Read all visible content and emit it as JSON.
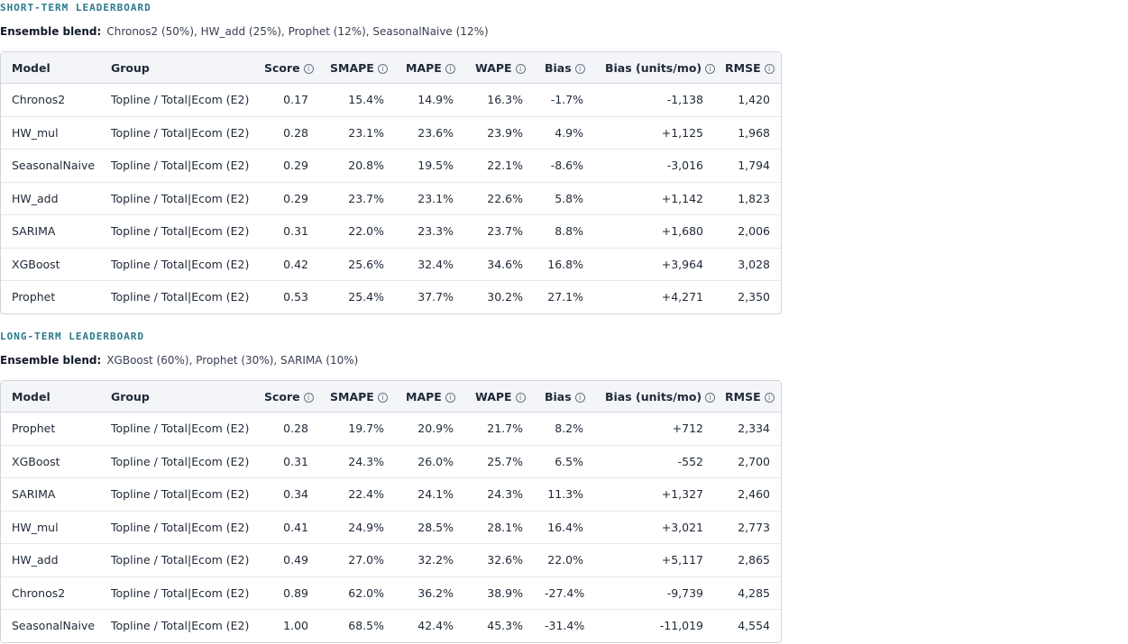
{
  "columns": {
    "model": "Model",
    "group": "Group",
    "score": "Score",
    "smape": "SMAPE",
    "mape": "MAPE",
    "wape": "WAPE",
    "bias": "Bias",
    "bias_units": "Bias (units/mo)",
    "rmse": "RMSE"
  },
  "ensemble_label": "Ensemble blend:",
  "short": {
    "title": "SHORT-TERM LEADERBOARD",
    "blend": "Chronos2 (50%), HW_add (25%), Prophet (12%), SeasonalNaive (12%)",
    "rows": [
      {
        "model": "Chronos2",
        "group": "Topline / Total|Ecom (E2)",
        "score": "0.17",
        "smape": "15.4%",
        "mape": "14.9%",
        "wape": "16.3%",
        "bias": "-1.7%",
        "bias_units": "-1,138",
        "rmse": "1,420"
      },
      {
        "model": "HW_mul",
        "group": "Topline / Total|Ecom (E2)",
        "score": "0.28",
        "smape": "23.1%",
        "mape": "23.6%",
        "wape": "23.9%",
        "bias": "4.9%",
        "bias_units": "+1,125",
        "rmse": "1,968"
      },
      {
        "model": "SeasonalNaive",
        "group": "Topline / Total|Ecom (E2)",
        "score": "0.29",
        "smape": "20.8%",
        "mape": "19.5%",
        "wape": "22.1%",
        "bias": "-8.6%",
        "bias_units": "-3,016",
        "rmse": "1,794"
      },
      {
        "model": "HW_add",
        "group": "Topline / Total|Ecom (E2)",
        "score": "0.29",
        "smape": "23.7%",
        "mape": "23.1%",
        "wape": "22.6%",
        "bias": "5.8%",
        "bias_units": "+1,142",
        "rmse": "1,823"
      },
      {
        "model": "SARIMA",
        "group": "Topline / Total|Ecom (E2)",
        "score": "0.31",
        "smape": "22.0%",
        "mape": "23.3%",
        "wape": "23.7%",
        "bias": "8.8%",
        "bias_units": "+1,680",
        "rmse": "2,006"
      },
      {
        "model": "XGBoost",
        "group": "Topline / Total|Ecom (E2)",
        "score": "0.42",
        "smape": "25.6%",
        "mape": "32.4%",
        "wape": "34.6%",
        "bias": "16.8%",
        "bias_units": "+3,964",
        "rmse": "3,028"
      },
      {
        "model": "Prophet",
        "group": "Topline / Total|Ecom (E2)",
        "score": "0.53",
        "smape": "25.4%",
        "mape": "37.7%",
        "wape": "30.2%",
        "bias": "27.1%",
        "bias_units": "+4,271",
        "rmse": "2,350"
      }
    ]
  },
  "long": {
    "title": "LONG-TERM LEADERBOARD",
    "blend": "XGBoost (60%), Prophet (30%), SARIMA (10%)",
    "rows": [
      {
        "model": "Prophet",
        "group": "Topline / Total|Ecom (E2)",
        "score": "0.28",
        "smape": "19.7%",
        "mape": "20.9%",
        "wape": "21.7%",
        "bias": "8.2%",
        "bias_units": "+712",
        "rmse": "2,334"
      },
      {
        "model": "XGBoost",
        "group": "Topline / Total|Ecom (E2)",
        "score": "0.31",
        "smape": "24.3%",
        "mape": "26.0%",
        "wape": "25.7%",
        "bias": "6.5%",
        "bias_units": "-552",
        "rmse": "2,700"
      },
      {
        "model": "SARIMA",
        "group": "Topline / Total|Ecom (E2)",
        "score": "0.34",
        "smape": "22.4%",
        "mape": "24.1%",
        "wape": "24.3%",
        "bias": "11.3%",
        "bias_units": "+1,327",
        "rmse": "2,460"
      },
      {
        "model": "HW_mul",
        "group": "Topline / Total|Ecom (E2)",
        "score": "0.41",
        "smape": "24.9%",
        "mape": "28.5%",
        "wape": "28.1%",
        "bias": "16.4%",
        "bias_units": "+3,021",
        "rmse": "2,773"
      },
      {
        "model": "HW_add",
        "group": "Topline / Total|Ecom (E2)",
        "score": "0.49",
        "smape": "27.0%",
        "mape": "32.2%",
        "wape": "32.6%",
        "bias": "22.0%",
        "bias_units": "+5,117",
        "rmse": "2,865"
      },
      {
        "model": "Chronos2",
        "group": "Topline / Total|Ecom (E2)",
        "score": "0.89",
        "smape": "62.0%",
        "mape": "36.2%",
        "wape": "38.9%",
        "bias": "-27.4%",
        "bias_units": "-9,739",
        "rmse": "4,285"
      },
      {
        "model": "SeasonalNaive",
        "group": "Topline / Total|Ecom (E2)",
        "score": "1.00",
        "smape": "68.5%",
        "mape": "42.4%",
        "wape": "45.3%",
        "bias": "-31.4%",
        "bias_units": "-11,019",
        "rmse": "4,554"
      }
    ]
  },
  "icons": {
    "info": "info-circle-icon"
  }
}
